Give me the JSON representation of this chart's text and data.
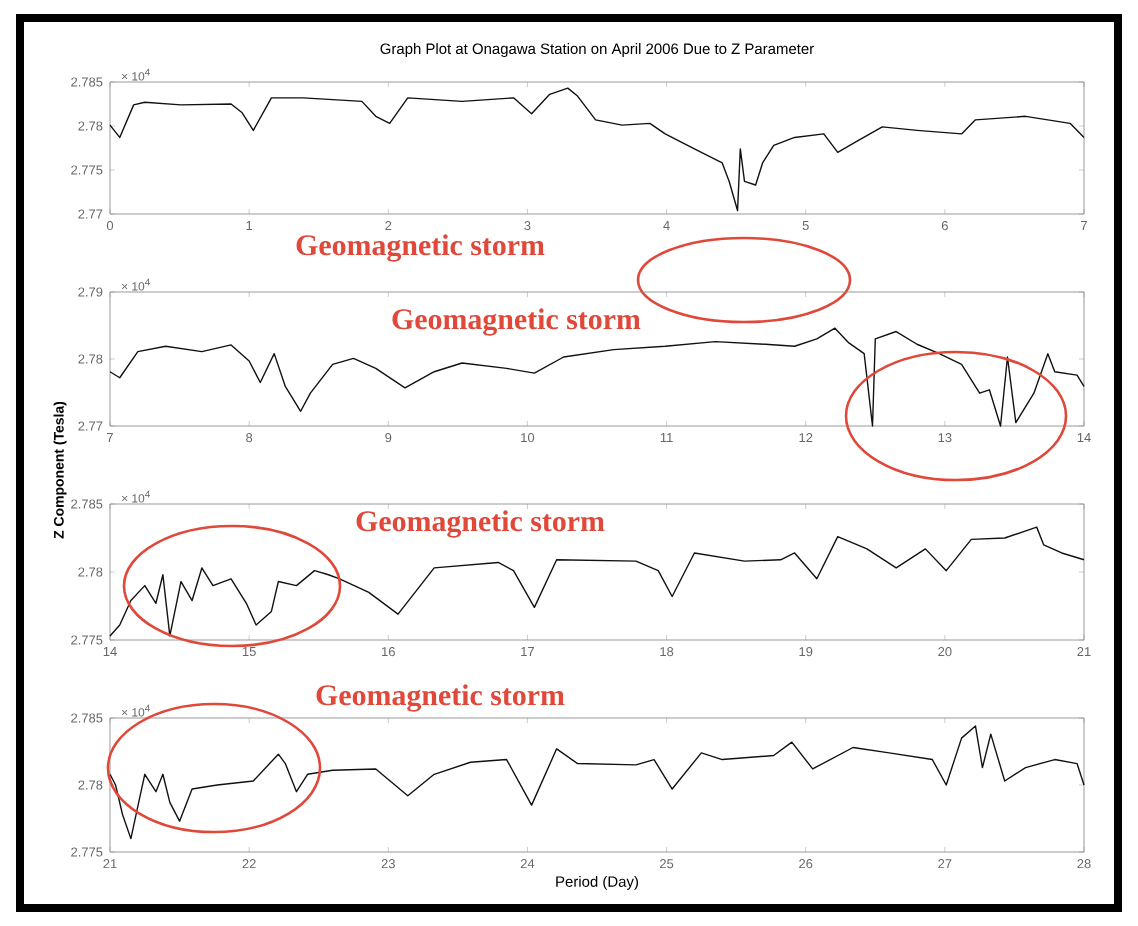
{
  "chart_data": [
    {
      "type": "line",
      "title": "Graph Plot at Onagawa Station on April 2006 Due to Z Parameter",
      "color": "#111111",
      "x": [
        0,
        0.07,
        0.17,
        0.25,
        0.51,
        0.87,
        0.95,
        1.03,
        1.16,
        1.39,
        1.81,
        1.91,
        2.01,
        2.14,
        2.53,
        2.9,
        3.03,
        3.16,
        3.29,
        3.36,
        3.49,
        3.68,
        3.88,
        3.99,
        4.2,
        4.4,
        4.45,
        4.51,
        4.53,
        4.56,
        4.64,
        4.69,
        4.77,
        4.92,
        5.13,
        5.23,
        5.36,
        5.55,
        5.8,
        6.12,
        6.22,
        6.58,
        6.9,
        7
      ],
      "values": [
        2.7801,
        2.7787,
        2.7824,
        2.7827,
        2.7824,
        2.7825,
        2.7815,
        2.7795,
        2.7832,
        2.7832,
        2.7828,
        2.7811,
        2.7803,
        2.7832,
        2.7828,
        2.7832,
        2.7814,
        2.7836,
        2.7843,
        2.7834,
        2.7807,
        2.7801,
        2.7803,
        2.7791,
        2.7774,
        2.7758,
        2.7737,
        2.7704,
        2.7774,
        2.7737,
        2.7733,
        2.7758,
        2.7778,
        2.7787,
        2.7791,
        2.777,
        2.7782,
        2.7799,
        2.7795,
        2.7791,
        2.7807,
        2.7811,
        2.7803,
        2.7787
      ],
      "xlim": [
        0,
        7
      ],
      "xticks": [
        0,
        1,
        2,
        3,
        4,
        5,
        6,
        7
      ],
      "ylim": [
        2.77,
        2.785
      ],
      "yticks": [
        2.77,
        2.775,
        2.78,
        2.785
      ],
      "annotations": [
        "× 10$^{4}$",
        "Geomagnetic storm"
      ]
    },
    {
      "type": "line",
      "ylabel": "Z Component (Tesla)",
      "color": "#111111",
      "x": [
        7,
        7.07,
        7.2,
        7.4,
        7.66,
        7.87,
        8.0,
        8.08,
        8.18,
        8.26,
        8.37,
        8.44,
        8.6,
        8.75,
        8.91,
        9.12,
        9.33,
        9.53,
        9.85,
        10.05,
        10.26,
        10.62,
        10.99,
        11.35,
        11.71,
        11.92,
        12.08,
        12.21,
        12.31,
        12.42,
        12.48,
        12.5,
        12.65,
        12.8,
        12.96,
        13.12,
        13.25,
        13.32,
        13.4,
        13.45,
        13.51,
        13.64,
        13.74,
        13.79,
        13.95,
        14
      ],
      "values": [
        2.7781,
        2.7772,
        2.7811,
        2.7819,
        2.7811,
        2.7821,
        2.7797,
        2.7765,
        2.7808,
        2.7759,
        2.7722,
        2.7749,
        2.7792,
        2.7801,
        2.7786,
        2.7757,
        2.7781,
        2.7794,
        2.7786,
        2.7779,
        2.7803,
        2.7814,
        2.7819,
        2.7826,
        2.7822,
        2.7819,
        2.783,
        2.7846,
        2.7824,
        2.7808,
        2.77,
        2.783,
        2.7841,
        2.7822,
        2.7808,
        2.7792,
        2.7749,
        2.7754,
        2.77,
        2.7803,
        2.7705,
        2.7749,
        2.7808,
        2.7781,
        2.7776,
        2.7759
      ],
      "xlim": [
        7,
        14
      ],
      "xticks": [
        7,
        8,
        9,
        10,
        11,
        12,
        13,
        14
      ],
      "ylim": [
        2.77,
        2.79
      ],
      "yticks": [
        2.77,
        2.78,
        2.79
      ],
      "annotations": [
        "× 10$^{4}$",
        "Geomagnetic storm"
      ]
    },
    {
      "type": "line",
      "color": "#111111",
      "x": [
        14,
        14.07,
        14.15,
        14.25,
        14.33,
        14.38,
        14.43,
        14.51,
        14.59,
        14.66,
        14.74,
        14.87,
        14.98,
        15.05,
        15.16,
        15.21,
        15.34,
        15.47,
        15.57,
        15.65,
        15.86,
        16.07,
        16.33,
        16.79,
        16.9,
        17.05,
        17.21,
        17.78,
        17.94,
        18.04,
        18.2,
        18.56,
        18.82,
        18.92,
        19.08,
        19.23,
        19.44,
        19.65,
        19.86,
        20.01,
        20.19,
        20.43,
        20.66,
        20.71,
        20.84,
        21
      ],
      "values": [
        2.7753,
        2.7761,
        2.7779,
        2.779,
        2.7777,
        2.7798,
        2.7753,
        2.7793,
        2.7779,
        2.7803,
        2.779,
        2.7795,
        2.7777,
        2.7761,
        2.7771,
        2.7793,
        2.779,
        2.7801,
        2.7798,
        2.7795,
        2.7785,
        2.7769,
        2.7803,
        2.7807,
        2.7801,
        2.7774,
        2.7809,
        2.7808,
        2.7801,
        2.7782,
        2.7814,
        2.7808,
        2.7809,
        2.7814,
        2.7795,
        2.7826,
        2.7817,
        2.7803,
        2.7817,
        2.7801,
        2.7824,
        2.7825,
        2.7833,
        2.782,
        2.7814,
        2.7809
      ],
      "xlim": [
        14,
        21
      ],
      "xticks": [
        14,
        15,
        16,
        17,
        18,
        19,
        20,
        21
      ],
      "ylim": [
        2.775,
        2.785
      ],
      "yticks": [
        2.775,
        2.78,
        2.785
      ],
      "annotations": [
        "× 10$^{4}$",
        "Geomagnetic storm"
      ]
    },
    {
      "type": "line",
      "xlabel": "Period (Day)",
      "color": "#111111",
      "x": [
        21,
        21.04,
        21.09,
        21.15,
        21.2,
        21.25,
        21.33,
        21.38,
        21.43,
        21.5,
        21.59,
        21.77,
        22.03,
        22.21,
        22.26,
        22.34,
        22.42,
        22.6,
        22.91,
        23.14,
        23.33,
        23.59,
        23.85,
        24.03,
        24.21,
        24.36,
        24.78,
        24.91,
        25.04,
        25.25,
        25.4,
        25.77,
        25.9,
        26.05,
        26.34,
        26.6,
        26.91,
        27.01,
        27.12,
        27.22,
        27.27,
        27.33,
        27.43,
        27.58,
        27.79,
        27.95,
        28
      ],
      "values": [
        2.7808,
        2.78,
        2.7778,
        2.776,
        2.7784,
        2.7808,
        2.7795,
        2.7808,
        2.7787,
        2.7773,
        2.7797,
        2.78,
        2.7803,
        2.7823,
        2.7816,
        2.7795,
        2.7808,
        2.7811,
        2.7812,
        2.7792,
        2.7808,
        2.7817,
        2.7819,
        2.7785,
        2.7827,
        2.7816,
        2.7815,
        2.7819,
        2.7797,
        2.7824,
        2.7819,
        2.7822,
        2.7832,
        2.7812,
        2.7828,
        2.7824,
        2.7819,
        2.78,
        2.7835,
        2.7844,
        2.7813,
        2.7838,
        2.7803,
        2.7813,
        2.7819,
        2.7816,
        2.78
      ],
      "xlim": [
        21,
        28
      ],
      "xticks": [
        21,
        22,
        23,
        24,
        25,
        26,
        27,
        28
      ],
      "ylim": [
        2.775,
        2.785
      ],
      "yticks": [
        2.775,
        2.78,
        2.785
      ],
      "annotations": [
        "× 10$^{4}$",
        "Geomagnetic storm"
      ]
    }
  ]
}
